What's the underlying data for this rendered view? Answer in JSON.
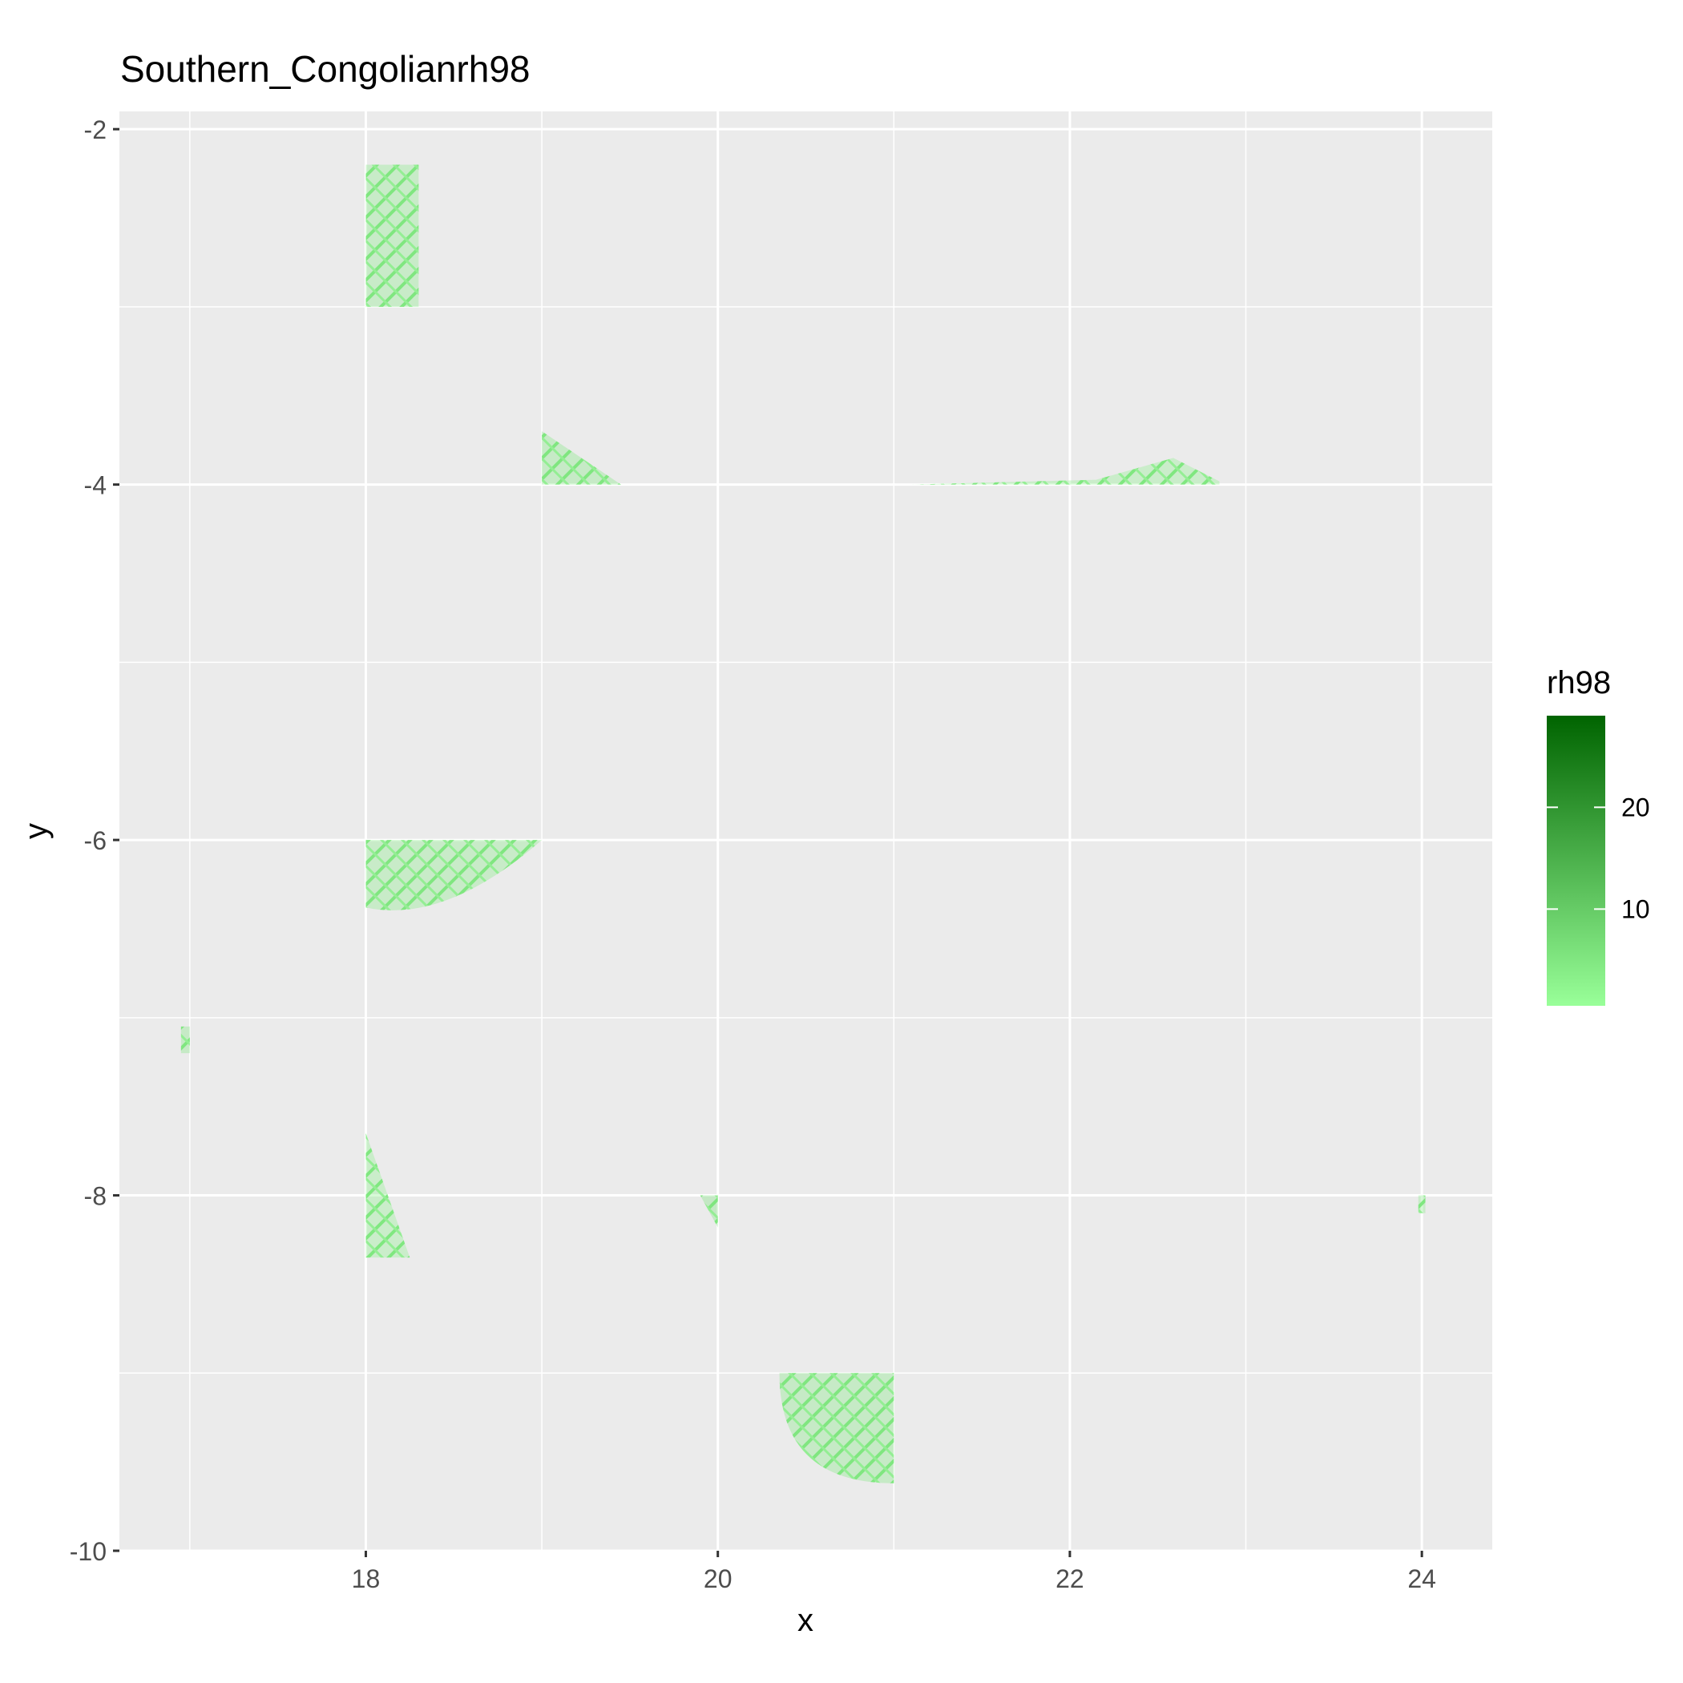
{
  "chart_data": {
    "type": "heatmap",
    "title": "Southern_Congolianrh98",
    "xlabel": "x",
    "ylabel": "y",
    "xlim": [
      16.6,
      24.4
    ],
    "ylim": [
      -10,
      -1.9
    ],
    "x_ticks": [
      18,
      20,
      22,
      24
    ],
    "x_tick_labels": [
      "18",
      "20",
      "22",
      "24"
    ],
    "y_ticks": [
      -2,
      -4,
      -6,
      -8,
      -10
    ],
    "y_tick_labels": [
      "-2",
      "-4",
      "-6",
      "-8",
      "-10"
    ],
    "x_minor_gridlines": [
      17,
      19,
      21,
      23
    ],
    "y_minor_gridlines": [
      -3,
      -5,
      -7,
      -9
    ],
    "grid": true,
    "legend": {
      "title": "rh98",
      "position": "right",
      "ticks": [
        10,
        20
      ],
      "tick_labels": [
        "10",
        "20"
      ],
      "range": [
        0.5,
        29
      ],
      "low_color": "#99FF99",
      "high_color": "#006400"
    },
    "colors": {
      "panel_background": "#EBEBEB",
      "gridline": "#FFFFFF",
      "low": "#99FF99",
      "high": "#006400"
    },
    "regions": [
      {
        "x": [
          18.0,
          18.3
        ],
        "y": [
          -3.0,
          -2.2
        ],
        "shape": "rect",
        "rh98": 4
      },
      {
        "x": [
          19.0,
          19.45
        ],
        "y": [
          -4.0,
          -3.7
        ],
        "shape": "wedge-top-left",
        "rh98": 5
      },
      {
        "x": [
          18.0,
          19.0
        ],
        "y": [
          -6.38,
          -6.0
        ],
        "shape": "half-lens-below",
        "rh98": 4
      },
      {
        "x": [
          16.95,
          17.0
        ],
        "y": [
          -7.2,
          -7.05
        ],
        "shape": "rect",
        "rh98": 5
      },
      {
        "x": [
          18.0,
          18.25
        ],
        "y": [
          -8.35,
          -7.65
        ],
        "shape": "wedge-top-left",
        "rh98": 3
      },
      {
        "x": [
          19.9,
          20.0
        ],
        "y": [
          -8.18,
          -8.0
        ],
        "shape": "wedge-top-right",
        "rh98": 6
      },
      {
        "x": [
          20.35,
          21.0
        ],
        "y": [
          -9.62,
          -9.0
        ],
        "shape": "quarter-disc",
        "rh98": 5
      },
      {
        "x": [
          21.1,
          22.85
        ],
        "y": [
          -4.0,
          -3.85
        ],
        "shape": "sliver",
        "rh98": 3
      },
      {
        "x": [
          23.98,
          24.02
        ],
        "y": [
          -8.1,
          -8.0
        ],
        "shape": "rect",
        "rh98": 4
      }
    ]
  }
}
